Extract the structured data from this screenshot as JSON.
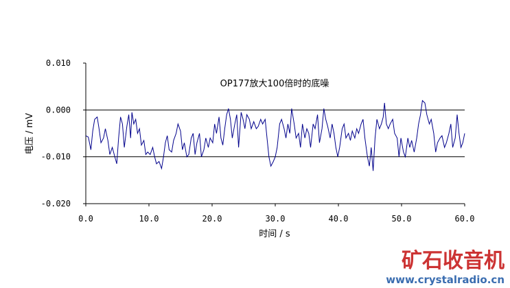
{
  "chart_data": {
    "type": "line",
    "title": "OP177放大100倍时的底噪",
    "xlabel": "时间 / s",
    "ylabel": "电压 / mV",
    "xlim": [
      0,
      60
    ],
    "ylim": [
      -0.02,
      0.01
    ],
    "x_ticks": [
      0,
      10,
      20,
      30,
      40,
      50,
      60
    ],
    "x_tick_labels": [
      "0.0",
      "10.0",
      "20.0",
      "30.0",
      "40.0",
      "50.0",
      "60.0"
    ],
    "y_ticks": [
      0.01,
      0.0,
      -0.01,
      -0.02
    ],
    "y_tick_labels": [
      "0.010",
      "0.000",
      "-0.010",
      "-0.020"
    ],
    "gridlines_y": [
      0.0,
      -0.01
    ],
    "line_color": "#00008b",
    "series": [
      {
        "values": [
          [
            0.0,
            -0.0055
          ],
          [
            0.4,
            -0.0058
          ],
          [
            0.8,
            -0.0085
          ],
          [
            1.1,
            -0.0045
          ],
          [
            1.4,
            -0.002
          ],
          [
            1.8,
            -0.0015
          ],
          [
            2.1,
            -0.004
          ],
          [
            2.4,
            -0.007
          ],
          [
            2.8,
            -0.006
          ],
          [
            3.1,
            -0.004
          ],
          [
            3.5,
            -0.0065
          ],
          [
            3.8,
            -0.0095
          ],
          [
            4.2,
            -0.008
          ],
          [
            4.6,
            -0.01
          ],
          [
            4.9,
            -0.0115
          ],
          [
            5.2,
            -0.006
          ],
          [
            5.5,
            -0.0015
          ],
          [
            5.8,
            -0.003
          ],
          [
            6.1,
            -0.008
          ],
          [
            6.5,
            -0.0035
          ],
          [
            6.8,
            -0.001
          ],
          [
            7.1,
            -0.006
          ],
          [
            7.3,
            -0.0005
          ],
          [
            7.6,
            -0.003
          ],
          [
            7.9,
            -0.002
          ],
          [
            8.2,
            -0.005
          ],
          [
            8.5,
            -0.004
          ],
          [
            8.8,
            -0.0075
          ],
          [
            9.2,
            -0.0065
          ],
          [
            9.5,
            -0.0095
          ],
          [
            9.8,
            -0.009
          ],
          [
            10.2,
            -0.0095
          ],
          [
            10.6,
            -0.008
          ],
          [
            10.9,
            -0.01
          ],
          [
            11.2,
            -0.0115
          ],
          [
            11.6,
            -0.011
          ],
          [
            12.0,
            -0.0125
          ],
          [
            12.3,
            -0.01
          ],
          [
            12.6,
            -0.007
          ],
          [
            12.9,
            -0.0055
          ],
          [
            13.2,
            -0.0085
          ],
          [
            13.6,
            -0.009
          ],
          [
            13.9,
            -0.0065
          ],
          [
            14.3,
            -0.005
          ],
          [
            14.6,
            -0.003
          ],
          [
            15.0,
            -0.0045
          ],
          [
            15.3,
            -0.0085
          ],
          [
            15.6,
            -0.007
          ],
          [
            16.0,
            -0.01
          ],
          [
            16.3,
            -0.0095
          ],
          [
            16.7,
            -0.006
          ],
          [
            17.0,
            -0.005
          ],
          [
            17.3,
            -0.0095
          ],
          [
            17.6,
            -0.007
          ],
          [
            18.0,
            -0.005
          ],
          [
            18.3,
            -0.01
          ],
          [
            18.7,
            -0.0085
          ],
          [
            19.0,
            -0.006
          ],
          [
            19.4,
            -0.008
          ],
          [
            19.7,
            -0.006
          ],
          [
            20.1,
            -0.007
          ],
          [
            20.4,
            -0.003
          ],
          [
            20.7,
            -0.005
          ],
          [
            21.1,
            -0.0015
          ],
          [
            21.4,
            -0.006
          ],
          [
            21.7,
            -0.0075
          ],
          [
            22.0,
            -0.004
          ],
          [
            22.3,
            -0.001
          ],
          [
            22.6,
            0.0003
          ],
          [
            22.9,
            -0.002
          ],
          [
            23.2,
            -0.006
          ],
          [
            23.6,
            -0.003
          ],
          [
            23.9,
            -0.001
          ],
          [
            24.2,
            -0.008
          ],
          [
            24.6,
            -0.0005
          ],
          [
            24.9,
            -0.002
          ],
          [
            25.2,
            -0.004
          ],
          [
            25.5,
            -0.001
          ],
          [
            25.9,
            -0.002
          ],
          [
            26.2,
            -0.004
          ],
          [
            26.6,
            -0.0025
          ],
          [
            27.0,
            -0.004
          ],
          [
            27.3,
            -0.0035
          ],
          [
            27.7,
            -0.002
          ],
          [
            28.0,
            -0.003
          ],
          [
            28.4,
            -0.002
          ],
          [
            28.7,
            -0.006
          ],
          [
            29.0,
            -0.01
          ],
          [
            29.3,
            -0.012
          ],
          [
            29.7,
            -0.011
          ],
          [
            30.0,
            -0.01
          ],
          [
            30.3,
            -0.008
          ],
          [
            30.7,
            -0.003
          ],
          [
            31.0,
            -0.002
          ],
          [
            31.4,
            -0.004
          ],
          [
            31.7,
            -0.006
          ],
          [
            32.0,
            -0.003
          ],
          [
            32.3,
            -0.005
          ],
          [
            32.6,
            0.0003
          ],
          [
            33.0,
            -0.003
          ],
          [
            33.3,
            -0.006
          ],
          [
            33.7,
            -0.005
          ],
          [
            34.0,
            -0.008
          ],
          [
            34.3,
            -0.003
          ],
          [
            34.7,
            -0.006
          ],
          [
            35.0,
            -0.004
          ],
          [
            35.3,
            -0.005
          ],
          [
            35.6,
            -0.008
          ],
          [
            36.0,
            -0.003
          ],
          [
            36.3,
            -0.004
          ],
          [
            36.7,
            -0.001
          ],
          [
            37.0,
            -0.007
          ],
          [
            37.4,
            -0.004
          ],
          [
            37.7,
            0.0003
          ],
          [
            38.0,
            -0.002
          ],
          [
            38.3,
            -0.0035
          ],
          [
            38.7,
            -0.006
          ],
          [
            39.0,
            -0.003
          ],
          [
            39.3,
            -0.005
          ],
          [
            39.6,
            -0.008
          ],
          [
            39.9,
            -0.01
          ],
          [
            40.2,
            -0.008
          ],
          [
            40.6,
            -0.004
          ],
          [
            40.9,
            -0.003
          ],
          [
            41.2,
            -0.006
          ],
          [
            41.6,
            -0.005
          ],
          [
            41.9,
            -0.0065
          ],
          [
            42.2,
            -0.0045
          ],
          [
            42.6,
            -0.006
          ],
          [
            42.9,
            -0.004
          ],
          [
            43.2,
            -0.005
          ],
          [
            43.6,
            -0.003
          ],
          [
            43.9,
            -0.002
          ],
          [
            44.2,
            -0.006
          ],
          [
            44.6,
            -0.01
          ],
          [
            44.9,
            -0.012
          ],
          [
            45.2,
            -0.008
          ],
          [
            45.5,
            -0.013
          ],
          [
            45.8,
            -0.006
          ],
          [
            46.1,
            -0.002
          ],
          [
            46.5,
            -0.004
          ],
          [
            46.8,
            -0.003
          ],
          [
            47.1,
            -0.0015
          ],
          [
            47.3,
            0.0015
          ],
          [
            47.6,
            -0.003
          ],
          [
            47.9,
            -0.004
          ],
          [
            48.2,
            -0.003
          ],
          [
            48.6,
            -0.002
          ],
          [
            48.9,
            -0.005
          ],
          [
            49.3,
            -0.006
          ],
          [
            49.6,
            -0.01
          ],
          [
            49.9,
            -0.006
          ],
          [
            50.3,
            -0.009
          ],
          [
            50.6,
            -0.01
          ],
          [
            51.0,
            -0.006
          ],
          [
            51.3,
            -0.008
          ],
          [
            51.6,
            -0.0065
          ],
          [
            52.0,
            -0.009
          ],
          [
            52.4,
            -0.006
          ],
          [
            52.7,
            -0.003
          ],
          [
            53.0,
            -0.001
          ],
          [
            53.3,
            0.002
          ],
          [
            53.7,
            0.0015
          ],
          [
            54.0,
            -0.001
          ],
          [
            54.4,
            -0.003
          ],
          [
            54.7,
            -0.002
          ],
          [
            55.1,
            -0.005
          ],
          [
            55.4,
            -0.009
          ],
          [
            55.7,
            -0.007
          ],
          [
            56.1,
            -0.006
          ],
          [
            56.4,
            -0.0055
          ],
          [
            56.8,
            -0.008
          ],
          [
            57.1,
            -0.007
          ],
          [
            57.5,
            -0.005
          ],
          [
            57.8,
            -0.003
          ],
          [
            58.1,
            -0.008
          ],
          [
            58.5,
            -0.006
          ],
          [
            58.8,
            -0.001
          ],
          [
            59.1,
            -0.005
          ],
          [
            59.4,
            -0.008
          ],
          [
            59.7,
            -0.007
          ],
          [
            60.0,
            -0.005
          ]
        ]
      }
    ]
  },
  "watermark": {
    "cn": "矿石收音机",
    "url": "www.crystalradio.cn",
    "color_cn": "#cc3333",
    "color_url": "#3a6db0"
  }
}
